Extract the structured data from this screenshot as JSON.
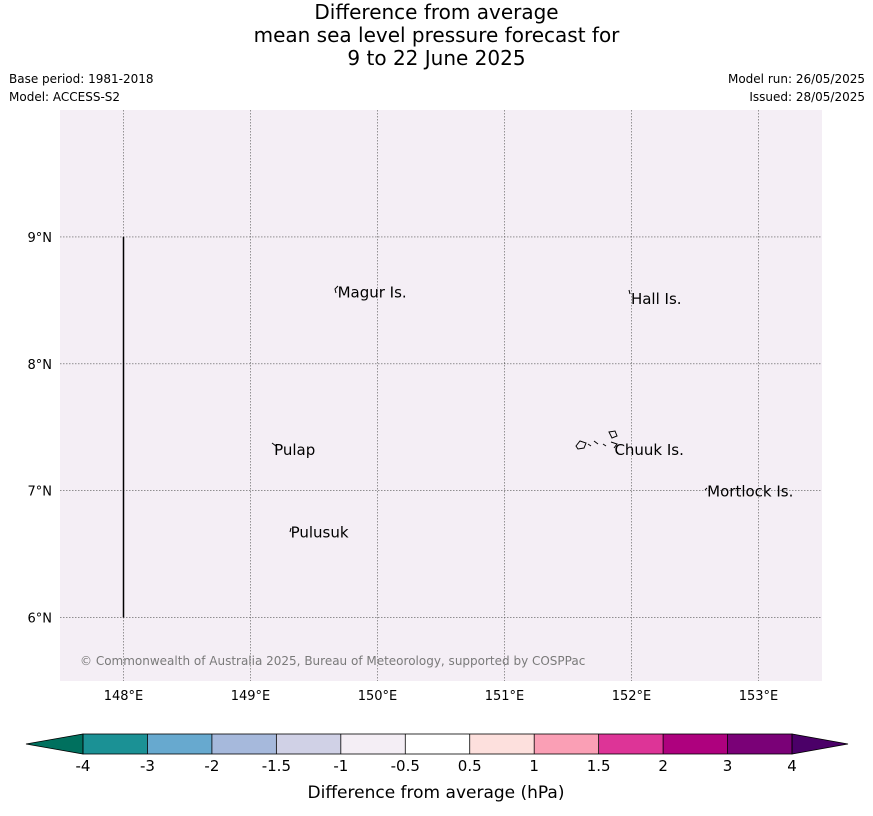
{
  "title": {
    "line1": "Difference from average",
    "line2": "mean sea level pressure forecast for",
    "line3": "9 to 22 June 2025"
  },
  "info": {
    "base_period": "Base period: 1981-2018",
    "model": "Model: ACCESS-S2",
    "model_run": "Model run: 26/05/2025",
    "issued": "Issued: 28/05/2025"
  },
  "map": {
    "lon_range": [
      147.5,
      153.5
    ],
    "lat_range": [
      5.5,
      10.0
    ],
    "background_color": "#f4eef5",
    "grid": true,
    "lon_ticks": [
      148,
      149,
      150,
      151,
      152,
      153
    ],
    "lon_tick_labels": [
      "148°E",
      "149°E",
      "150°E",
      "151°E",
      "152°E",
      "153°E"
    ],
    "lat_ticks": [
      6,
      7,
      8,
      9
    ],
    "lat_tick_labels": [
      "6°N",
      "7°N",
      "8°N",
      "9°N"
    ],
    "boundary_line": {
      "lon": 148.0,
      "lat_from": 6.0,
      "lat_to": 9.0
    },
    "places": [
      {
        "name": "Magur Is.",
        "lon": 149.67,
        "lat": 8.57
      },
      {
        "name": "Hall Is.",
        "lon": 151.98,
        "lat": 8.52
      },
      {
        "name": "Pulap",
        "lon": 149.17,
        "lat": 7.33
      },
      {
        "name": "Chuuk Is.",
        "lon": 151.85,
        "lat": 7.33
      },
      {
        "name": "Mortlock Is.",
        "lon": 152.58,
        "lat": 7.0
      },
      {
        "name": "Pulusuk",
        "lon": 149.3,
        "lat": 6.68
      }
    ],
    "copyright": "© Commonwealth of Australia 2025, Bureau of Meteorology, supported by COSPPac"
  },
  "colorbar": {
    "title": "Difference from average (hPa)",
    "tick_labels": [
      "-4",
      "-3",
      "-2",
      "-1.5",
      "-1",
      "-0.5",
      "0.5",
      "1",
      "1.5",
      "2",
      "3",
      "4"
    ],
    "under_color": "#00705e",
    "over_color": "#4b0068",
    "colors": [
      "#1b9195",
      "#67a9cf",
      "#a6b9dc",
      "#d0d1e6",
      "#f4eef5",
      "#ffffff",
      "#fde0dd",
      "#fa9fb5",
      "#dd3497",
      "#ae017e",
      "#7a0177"
    ]
  }
}
